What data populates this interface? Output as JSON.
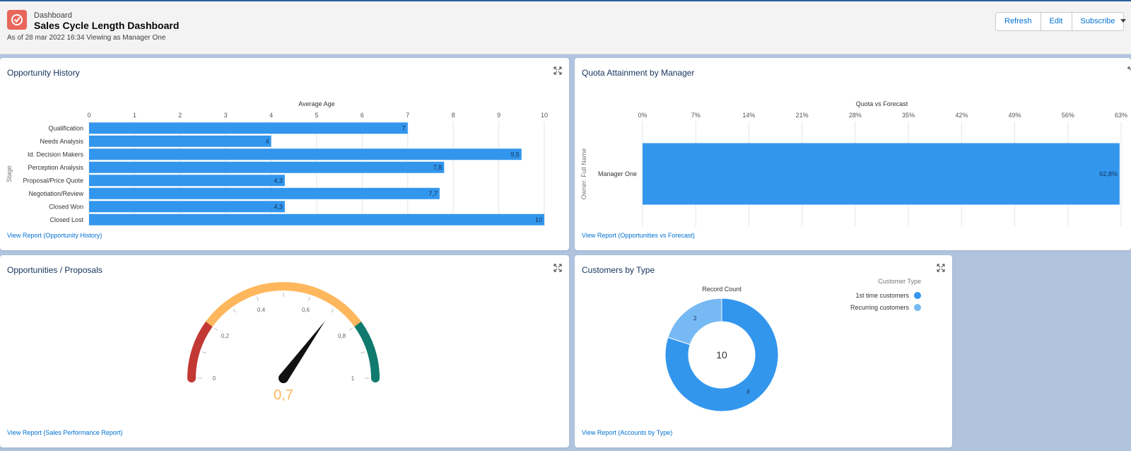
{
  "header": {
    "eyebrow": "Dashboard",
    "title": "Sales Cycle Length Dashboard",
    "subtitle": "As of 28 mar 2022 16:34 Viewing as Manager One",
    "buttons": {
      "refresh": "Refresh",
      "edit": "Edit",
      "subscribe": "Subscribe"
    }
  },
  "colors": {
    "bar": "#3296ed",
    "bar_light": "#77b9f2",
    "gauge_low": "#c23934",
    "gauge_mid": "#ffb75d",
    "gauge_high": "#107a6e"
  },
  "cards": {
    "opportunity_history": {
      "title": "Opportunity History",
      "link": "View Report (Opportunity History)",
      "chart_data": {
        "type": "bar",
        "title": "Average Age",
        "ylabel": "Stage",
        "xlabel": "",
        "xlim": [
          0,
          10
        ],
        "ticks": [
          "0",
          "1",
          "2",
          "3",
          "4",
          "5",
          "6",
          "7",
          "8",
          "9",
          "10"
        ],
        "categories": [
          "Qualification",
          "Needs Analysis",
          "Id. Decision Makers",
          "Perception Analysis",
          "Proposal/Price Quote",
          "Negotiation/Review",
          "Closed Won",
          "Closed Lost"
        ],
        "values": [
          7,
          4,
          9.5,
          7.8,
          4.3,
          7.7,
          4.3,
          10
        ],
        "value_labels": [
          "7",
          "4",
          "9,5",
          "7,8",
          "4,3",
          "7,7",
          "4,3",
          "10"
        ]
      }
    },
    "quota_attainment": {
      "title": "Quota Attainment by Manager",
      "link": "View Report (Opportunities vs Forecast)",
      "chart_data": {
        "type": "bar",
        "title": "Quota vs Forecast",
        "ylabel": "Owner: Full Name",
        "xlabel": "",
        "xlim": [
          0,
          63
        ],
        "ticks": [
          "0%",
          "7%",
          "14%",
          "21%",
          "28%",
          "35%",
          "42%",
          "49%",
          "56%",
          "63%"
        ],
        "categories": [
          "Manager One"
        ],
        "values": [
          62.8
        ],
        "value_labels": [
          "62,8%"
        ]
      }
    },
    "opportunities_proposals": {
      "title": "Opportunities / Proposals",
      "link": "View Report (Sales Performance Report)",
      "gauge": {
        "min": 0,
        "max": 1,
        "value": 0.7,
        "value_label": "0,7",
        "bands": [
          0.2,
          0.8
        ],
        "ticks": [
          "0",
          "0,2",
          "0,4",
          "0,6",
          "0,8",
          "1"
        ]
      }
    },
    "customers_by_type": {
      "title": "Customers by Type",
      "link": "View Report (Accounts by Type)",
      "chart_data": {
        "type": "pie",
        "title": "Record Count",
        "legend_title": "Customer Type",
        "total_label": "10",
        "categories": [
          "1st time customers",
          "Recurring customers"
        ],
        "values": [
          8,
          2
        ],
        "value_labels": [
          "8",
          "2"
        ]
      }
    }
  }
}
